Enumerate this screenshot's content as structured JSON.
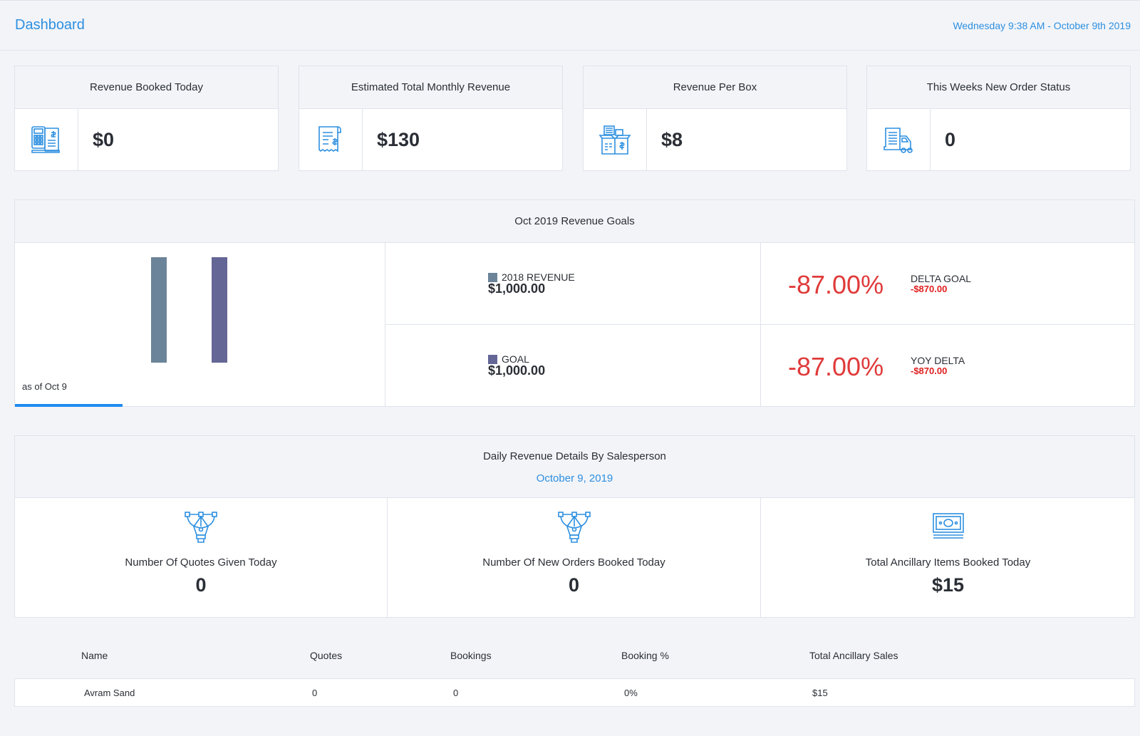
{
  "header": {
    "title": "Dashboard",
    "datetime": "Wednesday 9:38 AM - October 9th 2019"
  },
  "cards": [
    {
      "title": "Revenue Booked Today",
      "value": "$0",
      "icon": "calculator-invoice-icon"
    },
    {
      "title": "Estimated Total Monthly Revenue",
      "value": "$130",
      "icon": "receipt-icon"
    },
    {
      "title": "Revenue Per Box",
      "value": "$8",
      "icon": "box-icon"
    },
    {
      "title": "This Weeks New Order Status",
      "value": "0",
      "icon": "delivery-truck-icon"
    }
  ],
  "goals": {
    "title": "Oct 2019 Revenue Goals",
    "as_of": "as of Oct 9",
    "progress_fraction": 0.29,
    "legend": [
      {
        "label": "2018 REVENUE",
        "amount": "$1,000.00",
        "color": "#6b8499"
      },
      {
        "label": "GOAL",
        "amount": "$1,000.00",
        "color": "#646696"
      }
    ],
    "deltas": [
      {
        "pct": "-87.00%",
        "label": "DELTA GOAL",
        "amount": "-$870.00"
      },
      {
        "pct": "-87.00%",
        "label": "YOY DELTA",
        "amount": "-$870.00"
      }
    ]
  },
  "chart_data": {
    "type": "bar",
    "categories": [
      "2018 REVENUE",
      "GOAL"
    ],
    "values": [
      1000,
      1000
    ],
    "colors": [
      "#6b8499",
      "#646696"
    ],
    "ylim": [
      0,
      1000
    ],
    "grid": false
  },
  "daily": {
    "title": "Daily Revenue Details By Salesperson",
    "date": "October 9, 2019",
    "stats": [
      {
        "label": "Number Of Quotes Given Today",
        "value": "0",
        "icon": "pen-tool-icon"
      },
      {
        "label": "Number Of New Orders Booked Today",
        "value": "0",
        "icon": "pen-tool-icon"
      },
      {
        "label": "Total Ancillary Items Booked Today",
        "value": "$15",
        "icon": "cash-icon"
      }
    ]
  },
  "table": {
    "columns": [
      "Name",
      "Quotes",
      "Bookings",
      "Booking %",
      "Total Ancillary Sales"
    ],
    "rows": [
      [
        "Avram Sand",
        "0",
        "0",
        "0%",
        "$15"
      ]
    ]
  },
  "colors": {
    "accent": "#2d8fe0",
    "negative": "#e03a3a",
    "background": "#f2f4f8"
  }
}
